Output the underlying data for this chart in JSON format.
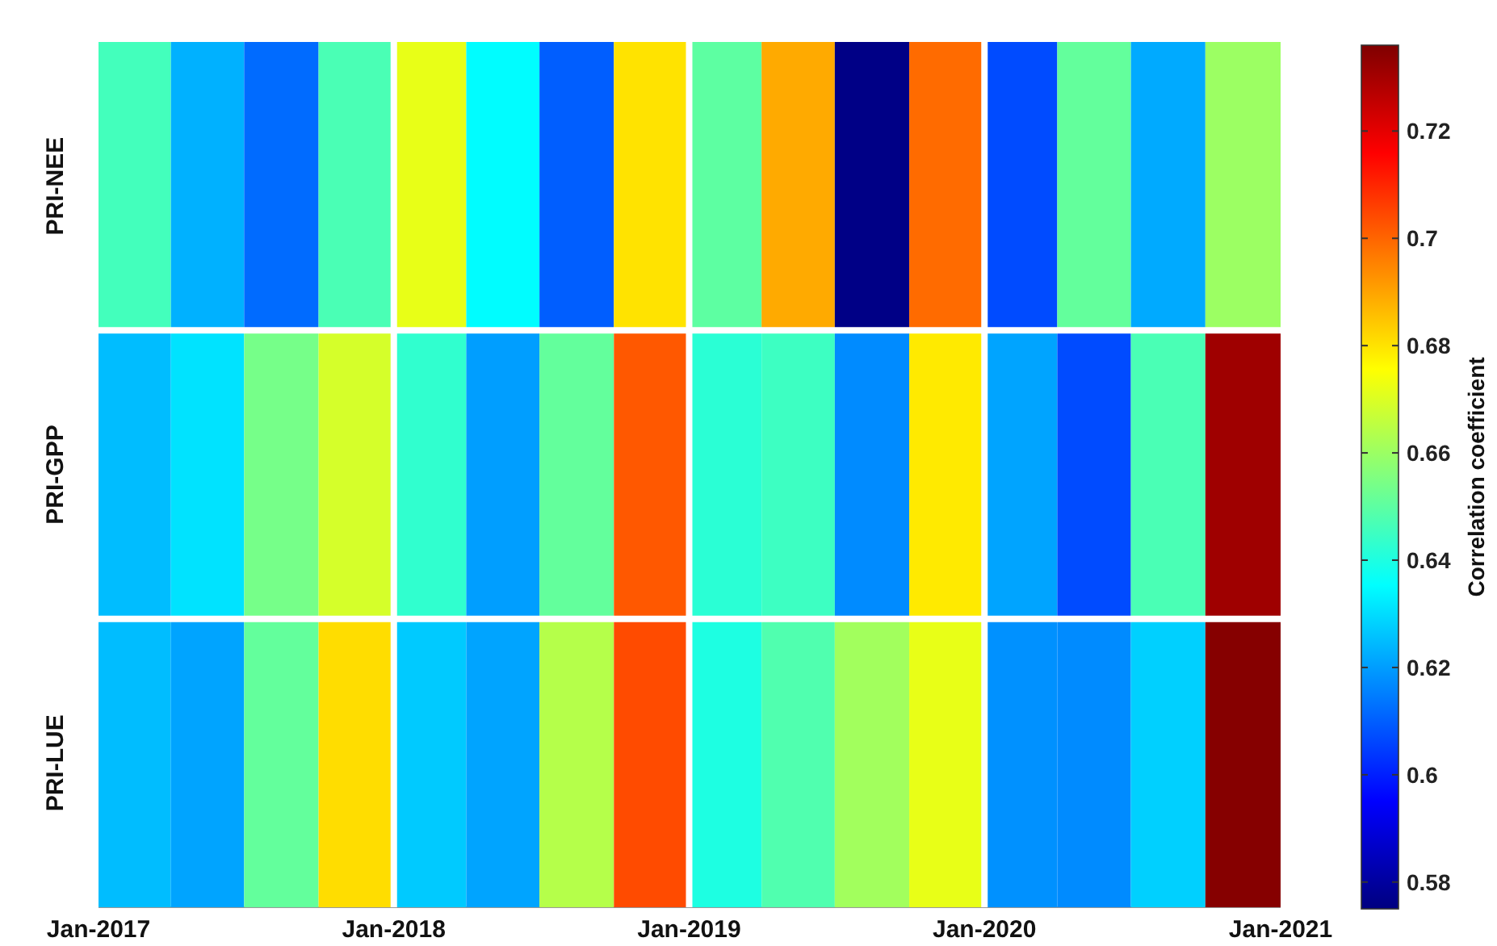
{
  "chart_data": {
    "type": "heatmap",
    "x": [
      "2017-02-15",
      "2017-05-15",
      "2017-08-15",
      "2017-11-15",
      "2018-02-15",
      "2018-05-15",
      "2018-08-15",
      "2018-11-15",
      "2019-02-15",
      "2019-05-15",
      "2019-08-15",
      "2019-11-15",
      "2020-02-15",
      "2020-05-15",
      "2020-08-15",
      "2020-11-15"
    ],
    "xlim": [
      "2017-01",
      "2021-01"
    ],
    "xticks": [
      {
        "value": "2017-01",
        "label": "Jan-2017"
      },
      {
        "value": "2018-01",
        "label": "Jan-2018"
      },
      {
        "value": "2019-01",
        "label": "Jan-2019"
      },
      {
        "value": "2020-01",
        "label": "Jan-2020"
      },
      {
        "value": "2021-01",
        "label": "Jan-2021"
      }
    ],
    "y_categories": [
      "PRI-NEE",
      "PRI-GPP",
      "PRI-LUE"
    ],
    "cells": [
      [
        0.646,
        0.623,
        0.612,
        0.647,
        0.672,
        0.635,
        0.61,
        0.68,
        0.65,
        0.689,
        0.576,
        0.699,
        0.607,
        0.651,
        0.622,
        0.66
      ],
      [
        0.625,
        0.631,
        0.654,
        0.669,
        0.643,
        0.62,
        0.651,
        0.702,
        0.642,
        0.645,
        0.617,
        0.679,
        0.621,
        0.607,
        0.647,
        0.731
      ],
      [
        0.625,
        0.621,
        0.651,
        0.681,
        0.627,
        0.621,
        0.664,
        0.704,
        0.64,
        0.648,
        0.661,
        0.672,
        0.618,
        0.617,
        0.628,
        0.735
      ]
    ],
    "clabel": "Correlation coefficient",
    "clim": [
      0.575,
      0.736
    ],
    "cticks": [
      0.58,
      0.6,
      0.62,
      0.64,
      0.66,
      0.68,
      0.7,
      0.72
    ],
    "grid": true
  }
}
